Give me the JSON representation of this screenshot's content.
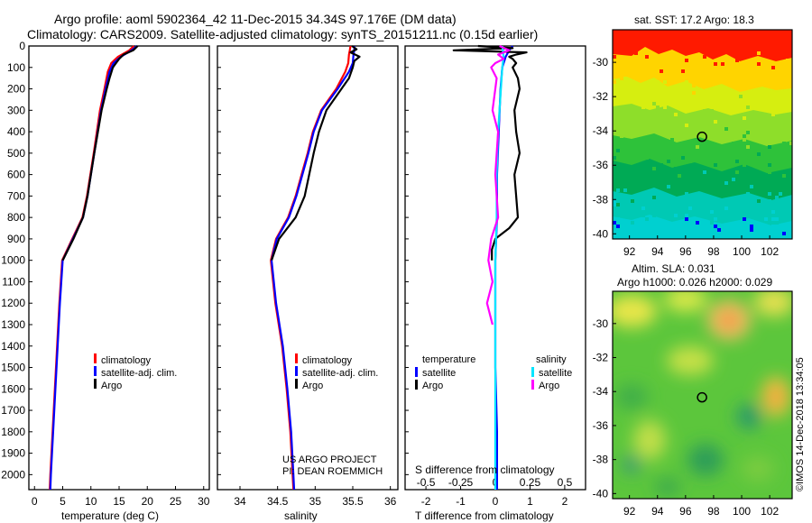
{
  "title_line1": "Argo profile: aoml 5902364_42 11-Dec-2015 34.34S 97.176E (DM data)",
  "title_line2": "Climatology: CARS2009. Satellite-adjusted climatology: synTS_20151211.nc (0.15d earlier)",
  "credit": {
    "line1": "US ARGO PROJECT",
    "line2": "PI: DEAN ROEMMICH"
  },
  "imos_stamp": "©IMOS 14-Dec-2018 13:34:05",
  "colors": {
    "climatology": "#ff0000",
    "satellite": "#0000ff",
    "argo": "#000000",
    "sat_salinity": "#00e5ff",
    "argo_salinity": "#ff00ff"
  },
  "chart_data": [
    {
      "type": "line",
      "name": "temperature_profile",
      "xlabel": "temperature (deg C)",
      "xlim": [
        -1,
        31
      ],
      "xticks": [
        0,
        5,
        10,
        15,
        20,
        25,
        30
      ],
      "ylim": [
        2070,
        0
      ],
      "yticks": [
        0,
        100,
        200,
        300,
        400,
        500,
        600,
        700,
        800,
        900,
        1000,
        1100,
        1200,
        1300,
        1400,
        1500,
        1600,
        1700,
        1800,
        1900,
        2000
      ],
      "legend": [
        "climatology",
        "satellite-adj. clim.",
        "Argo"
      ],
      "series": [
        {
          "name": "climatology",
          "color": "#ff0000",
          "depth": [
            0,
            20,
            50,
            80,
            120,
            200,
            300,
            500,
            700,
            800,
            900,
            1000,
            1200,
            1400,
            1600,
            1800,
            2000,
            2070
          ],
          "values": [
            17.6,
            16.8,
            14.8,
            13.6,
            13.0,
            12.4,
            11.6,
            10.5,
            9.3,
            8.5,
            6.7,
            4.9,
            4.4,
            4.0,
            3.6,
            3.2,
            2.8,
            2.7
          ]
        },
        {
          "name": "satellite-adj. clim.",
          "color": "#0000ff",
          "depth": [
            0,
            20,
            50,
            80,
            120,
            200,
            300,
            500,
            700,
            800,
            900,
            1000,
            1200,
            1400,
            1600,
            1800,
            2000,
            2070
          ],
          "values": [
            18.2,
            17.2,
            15.3,
            14.0,
            13.3,
            12.6,
            11.8,
            10.6,
            9.4,
            8.6,
            6.8,
            5.0,
            4.5,
            4.1,
            3.7,
            3.3,
            2.9,
            2.8
          ]
        },
        {
          "name": "Argo",
          "color": "#000000",
          "depth": [
            0,
            20,
            40,
            60,
            100,
            150,
            200,
            300,
            500,
            700,
            800,
            900,
            1000
          ],
          "values": [
            18.3,
            17.5,
            15.8,
            15.0,
            13.9,
            13.3,
            12.8,
            11.9,
            10.6,
            9.4,
            8.6,
            6.9,
            5.0
          ]
        }
      ]
    },
    {
      "type": "line",
      "name": "salinity_profile",
      "xlabel": "salinity",
      "xlim": [
        33.7,
        36.1
      ],
      "xticks": [
        34,
        34.5,
        35,
        35.5,
        36
      ],
      "xtick_labels": [
        "34",
        "34.5",
        "35",
        "35.5",
        "36"
      ],
      "ylim": [
        2070,
        0
      ],
      "legend": [
        "climatology",
        "satellite-adj. clim.",
        "Argo"
      ],
      "series": [
        {
          "name": "climatology",
          "color": "#ff0000",
          "depth": [
            0,
            20,
            40,
            80,
            120,
            200,
            300,
            400,
            500,
            600,
            700,
            800,
            900,
            1000,
            1200,
            1400,
            1600,
            1800,
            2000,
            2070
          ],
          "values": [
            35.47,
            35.46,
            35.45,
            35.44,
            35.4,
            35.28,
            35.08,
            34.97,
            34.9,
            34.82,
            34.74,
            34.64,
            34.48,
            34.41,
            34.47,
            34.56,
            34.62,
            34.67,
            34.7,
            34.71
          ]
        },
        {
          "name": "satellite-adj. clim.",
          "color": "#0000ff",
          "depth": [
            0,
            20,
            40,
            80,
            120,
            200,
            300,
            400,
            500,
            600,
            700,
            800,
            900,
            1000,
            1200,
            1400,
            1600,
            1800,
            2000,
            2070
          ],
          "values": [
            35.52,
            35.52,
            35.51,
            35.5,
            35.45,
            35.3,
            35.09,
            34.98,
            34.91,
            34.83,
            34.75,
            34.65,
            34.49,
            34.42,
            34.48,
            34.57,
            34.63,
            34.68,
            34.71,
            34.72
          ]
        },
        {
          "name": "Argo",
          "color": "#000000",
          "depth": [
            0,
            15,
            30,
            50,
            70,
            100,
            150,
            200,
            300,
            400,
            500,
            600,
            700,
            800,
            900,
            1000
          ],
          "values": [
            35.49,
            35.55,
            35.47,
            35.59,
            35.52,
            35.5,
            35.45,
            35.35,
            35.15,
            35.05,
            34.98,
            34.92,
            34.86,
            34.74,
            34.52,
            34.42
          ]
        }
      ]
    },
    {
      "type": "line",
      "name": "difference_profile",
      "xlabel": "T difference from climatology",
      "xlabel2": "S difference from climatology",
      "xlim": [
        -2.6,
        2.6
      ],
      "xticks": [
        -2,
        -1,
        0,
        1,
        2
      ],
      "xticks_top": [
        -0.5,
        -0.25,
        0,
        0.25,
        0.5
      ],
      "xtick_labels_top": [
        "-0.5",
        "-0.25",
        "0",
        "0.25",
        "0.5"
      ],
      "ylim": [
        2070,
        0
      ],
      "legend_left_title": "temperature",
      "legend_right_title": "salinity",
      "legend": [
        "satellite",
        "Argo",
        "satellite",
        "Argo"
      ],
      "series": [
        {
          "name": "T satellite",
          "color": "#0000ff",
          "depth": [
            0,
            20,
            50,
            100,
            200,
            400,
            600,
            800,
            1000,
            1200,
            1500,
            1800,
            2000,
            2070
          ],
          "values": [
            0.5,
            0.4,
            0.3,
            0.2,
            0.15,
            0.1,
            0.05,
            0.05,
            0.0,
            0.0,
            0.0,
            0.05,
            0.05,
            0.05
          ]
        },
        {
          "name": "T Argo",
          "color": "#000000",
          "depth": [
            0,
            10,
            20,
            30,
            40,
            50,
            60,
            80,
            100,
            150,
            200,
            300,
            400,
            500,
            600,
            700,
            800,
            850,
            900,
            950,
            1000
          ],
          "values": [
            -0.5,
            0.5,
            -1.2,
            0.9,
            0.6,
            0.4,
            0.5,
            0.6,
            0.5,
            0.65,
            0.7,
            0.55,
            0.6,
            0.7,
            0.55,
            0.6,
            0.65,
            0.4,
            0.0,
            -0.1,
            -0.1
          ]
        },
        {
          "name": "S satellite",
          "color": "#00e5ff",
          "depth": [
            0,
            50,
            100,
            200,
            400,
            600,
            800,
            1000,
            1200,
            1500,
            1800,
            2000,
            2070
          ],
          "values": [
            0.05,
            0.06,
            0.05,
            0.04,
            0.02,
            0.01,
            0.01,
            0.0,
            0.0,
            0.0,
            0.0,
            0.0,
            0.0
          ]
        },
        {
          "name": "S Argo",
          "color": "#ff00ff",
          "depth": [
            0,
            20,
            40,
            60,
            80,
            100,
            150,
            200,
            300,
            400,
            600,
            800,
            900,
            1000,
            1100,
            1200,
            1300
          ],
          "values": [
            0.03,
            0.1,
            0.02,
            0.06,
            0.0,
            -0.03,
            0.01,
            0.0,
            -0.02,
            0.02,
            0.0,
            0.02,
            -0.03,
            -0.05,
            -0.02,
            -0.06,
            -0.02
          ]
        }
      ]
    },
    {
      "type": "heatmap",
      "name": "sst_map",
      "title": "sat. SST: 17.2  Argo: 18.3",
      "xticks": [
        92,
        94,
        96,
        98,
        100,
        102
      ],
      "yticks": [
        -30,
        -32,
        -34,
        -36,
        -38,
        -40
      ],
      "xlim": [
        90.8,
        103.6
      ],
      "ylim": [
        -40.3,
        -28.1
      ],
      "marker": {
        "lon": 97.176,
        "lat": -34.34
      }
    },
    {
      "type": "heatmap",
      "name": "sla_map",
      "title": "Altim. SLA: 0.031",
      "title2": "Argo h1000: 0.026 h2000: 0.029",
      "xticks": [
        92,
        94,
        96,
        98,
        100,
        102
      ],
      "yticks": [
        -30,
        -32,
        -34,
        -36,
        -38,
        -40
      ],
      "xlim": [
        90.8,
        103.6
      ],
      "ylim": [
        -40.3,
        -28.1
      ],
      "marker": {
        "lon": 97.176,
        "lat": -34.34
      }
    }
  ]
}
